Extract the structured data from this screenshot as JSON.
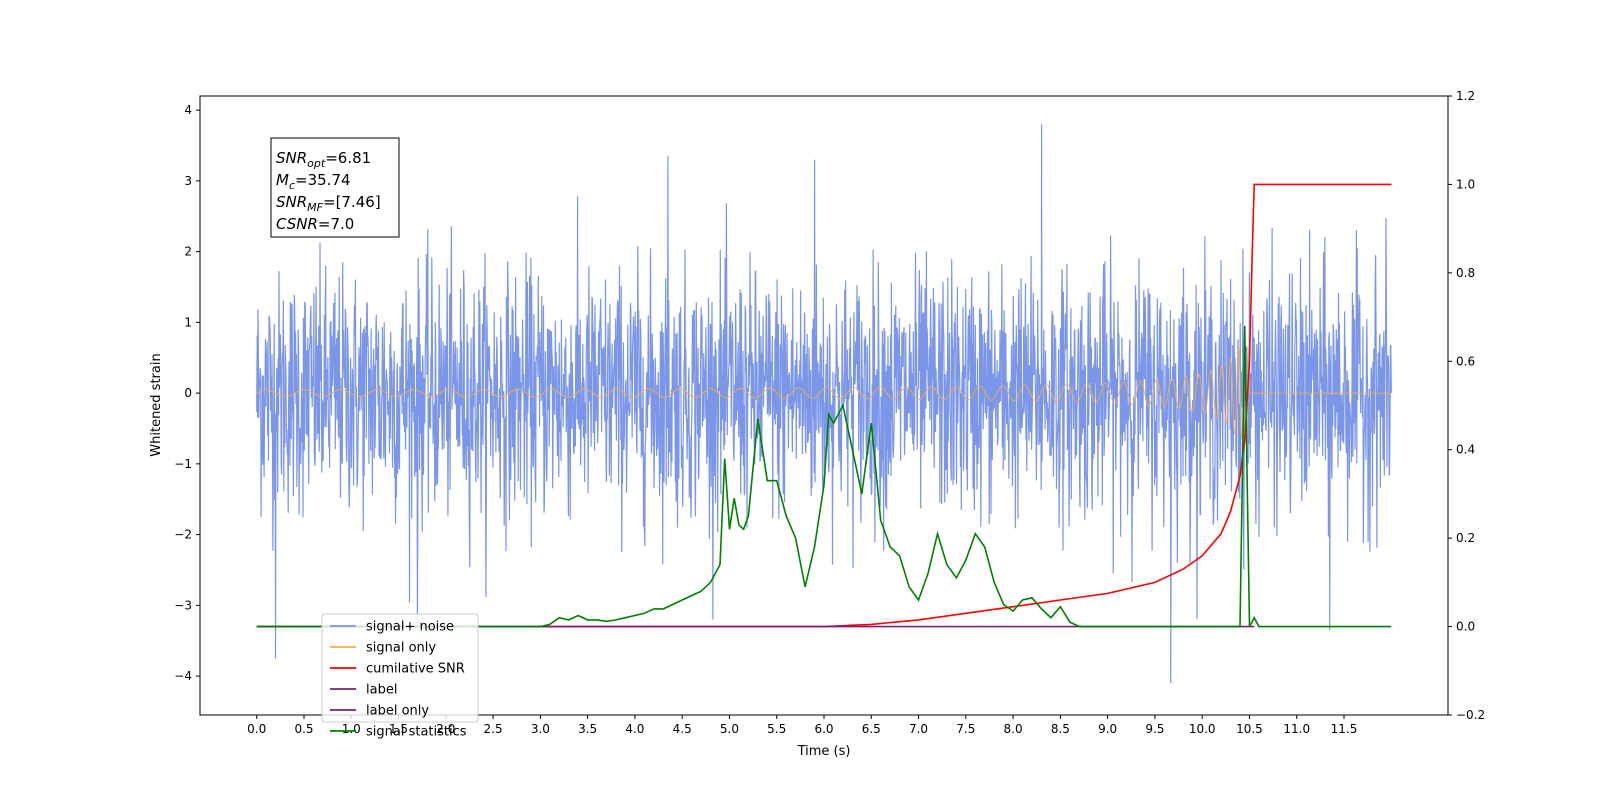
{
  "chart_data": {
    "type": "line",
    "xlabel": "Time (s)",
    "ylabel_left": "Whitened strain",
    "ylabel_right": "",
    "xlim": [
      -0.6,
      12.6
    ],
    "ylim_left": [
      -4.55,
      4.2
    ],
    "ylim_right": [
      -0.2,
      1.2
    ],
    "x_ticks": [
      0.0,
      0.5,
      1.0,
      1.5,
      2.0,
      2.5,
      3.0,
      3.5,
      4.0,
      4.5,
      5.0,
      5.5,
      6.0,
      6.5,
      7.0,
      7.5,
      8.0,
      8.5,
      9.0,
      9.5,
      10.0,
      10.5,
      11.0,
      11.5
    ],
    "x_tick_labels": [
      "0.0",
      "0.5",
      "1.0",
      "1.5",
      "2.0",
      "2.5",
      "3.0",
      "3.5",
      "4.0",
      "4.5",
      "5.0",
      "5.5",
      "6.0",
      "6.5",
      "7.0",
      "7.5",
      "8.0",
      "8.5",
      "9.0",
      "9.5",
      "10.0",
      "10.5",
      "11.0",
      "11.5"
    ],
    "y_left_ticks": [
      4,
      3,
      2,
      1,
      0,
      -1,
      -2,
      -3,
      -4
    ],
    "y_left_tick_labels": [
      "4",
      "3",
      "2",
      "1",
      "0",
      "−1",
      "−2",
      "−3",
      "−4"
    ],
    "y_right_ticks": [
      1.2,
      1.0,
      0.8,
      0.6,
      0.4,
      0.2,
      0.0,
      -0.2
    ],
    "y_right_tick_labels": [
      "1.2",
      "1.0",
      "0.8",
      "0.6",
      "0.4",
      "0.2",
      "0.0",
      "−0.2"
    ],
    "grid": false,
    "legend_position": "lower-left",
    "annotation": {
      "lines": [
        {
          "base": "SNR",
          "sub": "opt",
          "value": "=6.81"
        },
        {
          "base": "M",
          "sub": "c",
          "value": "=35.74"
        },
        {
          "base": "SNR",
          "sub": "MF",
          "value": "=[7.46]"
        },
        {
          "base": "CSNR",
          "sub": "",
          "value": "=7.0"
        }
      ]
    },
    "series": [
      {
        "name": "signal+ noise",
        "axis": "left",
        "color": "#7b96e8",
        "description_values": {
          "x_range": [
            0.0,
            12.0
          ],
          "approx_amplitude_std": 0.85,
          "peak_spikes": [
            [
              0.2,
              -3.75
            ],
            [
              1.7,
              -3.3
            ],
            [
              4.35,
              3.35
            ],
            [
              5.9,
              3.3
            ],
            [
              8.3,
              3.8
            ],
            [
              9.67,
              -4.1
            ],
            [
              11.35,
              -3.35
            ]
          ]
        }
      },
      {
        "name": "signal only",
        "axis": "left",
        "color": "#f5b041",
        "description_values": {
          "x_range": [
            0.0,
            12.0
          ],
          "chirp_end": 10.5,
          "max_amplitude": 0.65
        }
      },
      {
        "name": "cumilative SNR",
        "axis": "right",
        "color": "#ff0000",
        "x": [
          0.0,
          1.0,
          2.0,
          3.0,
          4.0,
          5.0,
          5.5,
          6.0,
          6.5,
          7.0,
          7.5,
          8.0,
          8.5,
          9.0,
          9.5,
          9.8,
          10.0,
          10.2,
          10.3,
          10.4,
          10.45,
          10.5,
          10.53,
          10.55,
          11.0,
          11.5,
          12.0
        ],
        "y": [
          0.0,
          0.0,
          0.0,
          0.0,
          0.0,
          0.0,
          0.0,
          0.0,
          0.005,
          0.015,
          0.03,
          0.045,
          0.06,
          0.075,
          0.1,
          0.13,
          0.16,
          0.21,
          0.26,
          0.34,
          0.42,
          0.6,
          0.85,
          1.0,
          1.0,
          1.0,
          1.0
        ]
      },
      {
        "name": "label",
        "axis": "right",
        "color": "#7b1f70",
        "x": [
          0.0,
          10.55
        ],
        "y": [
          0.0,
          0.0
        ]
      },
      {
        "name": "label only",
        "axis": "right",
        "color": "#7b1f70",
        "x": [],
        "y": []
      },
      {
        "name": "signal statistics",
        "axis": "right",
        "color": "#008000",
        "x": [
          0.0,
          3.0,
          3.1,
          3.2,
          3.3,
          3.4,
          3.5,
          3.6,
          3.7,
          3.8,
          3.9,
          4.0,
          4.1,
          4.2,
          4.3,
          4.4,
          4.5,
          4.6,
          4.7,
          4.8,
          4.9,
          4.95,
          5.0,
          5.05,
          5.1,
          5.15,
          5.2,
          5.3,
          5.4,
          5.5,
          5.6,
          5.7,
          5.8,
          5.9,
          6.0,
          6.05,
          6.1,
          6.2,
          6.3,
          6.4,
          6.5,
          6.6,
          6.7,
          6.8,
          6.9,
          7.0,
          7.1,
          7.2,
          7.3,
          7.4,
          7.5,
          7.6,
          7.7,
          7.8,
          7.9,
          8.0,
          8.1,
          8.2,
          8.3,
          8.4,
          8.5,
          8.6,
          8.7,
          9.0,
          10.0,
          10.4,
          10.45,
          10.5,
          10.55,
          10.6,
          10.7,
          11.0,
          12.0
        ],
        "y": [
          0.0,
          0.0,
          0.005,
          0.02,
          0.015,
          0.025,
          0.015,
          0.015,
          0.012,
          0.015,
          0.02,
          0.025,
          0.03,
          0.04,
          0.04,
          0.05,
          0.06,
          0.07,
          0.08,
          0.1,
          0.14,
          0.38,
          0.22,
          0.29,
          0.23,
          0.22,
          0.25,
          0.47,
          0.33,
          0.33,
          0.25,
          0.2,
          0.09,
          0.18,
          0.32,
          0.48,
          0.46,
          0.5,
          0.4,
          0.3,
          0.46,
          0.24,
          0.18,
          0.16,
          0.09,
          0.06,
          0.12,
          0.21,
          0.14,
          0.11,
          0.15,
          0.21,
          0.18,
          0.1,
          0.05,
          0.035,
          0.06,
          0.065,
          0.04,
          0.02,
          0.045,
          0.01,
          0.0,
          0.0,
          0.0,
          0.0,
          0.68,
          0.0,
          0.02,
          0.0,
          0.0,
          0.0,
          0.0
        ]
      }
    ]
  }
}
